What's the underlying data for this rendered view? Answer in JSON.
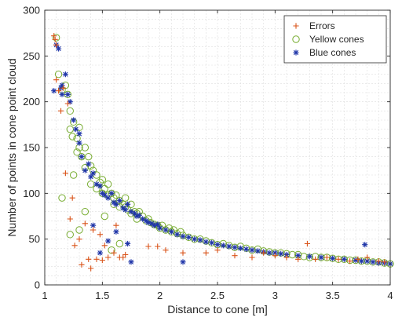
{
  "chart_data": {
    "type": "scatter",
    "title": "",
    "xlabel": "Distance to cone [m]",
    "ylabel": "Number of points in cone point cloud",
    "xlim": [
      1,
      4
    ],
    "ylim": [
      0,
      300
    ],
    "xticks": [
      "1",
      "1.5",
      "2",
      "2.5",
      "3",
      "3.5",
      "4"
    ],
    "yticks": [
      "0",
      "50",
      "100",
      "150",
      "200",
      "250",
      "300"
    ],
    "grid": true,
    "minor_grid": true,
    "legend_position": "top-right",
    "series": [
      {
        "name": "Errors",
        "marker": "plus",
        "color": "#d95319",
        "x": [
          1.08,
          1.09,
          1.1,
          1.1,
          1.12,
          1.14,
          1.16,
          1.18,
          1.2,
          1.22,
          1.24,
          1.26,
          1.3,
          1.32,
          1.35,
          1.38,
          1.4,
          1.42,
          1.45,
          1.48,
          1.5,
          1.52,
          1.55,
          1.6,
          1.62,
          1.65,
          1.68,
          1.7,
          1.9,
          1.98,
          2.05,
          2.2,
          2.4,
          2.5,
          2.65,
          2.8,
          2.9,
          3.0,
          3.1,
          3.2,
          3.28,
          3.35,
          3.45,
          3.55,
          3.65,
          3.72,
          3.8,
          3.9,
          3.95
        ],
        "y": [
          272,
          268,
          224,
          262,
          212,
          190,
          215,
          122,
          198,
          72,
          95,
          43,
          50,
          22,
          67,
          28,
          18,
          60,
          28,
          55,
          27,
          43,
          30,
          35,
          65,
          30,
          30,
          33,
          42,
          42,
          38,
          35,
          35,
          38,
          32,
          30,
          35,
          32,
          30,
          28,
          45,
          28,
          30,
          28,
          26,
          28,
          30,
          26,
          25
        ]
      },
      {
        "name": "Yellow cones",
        "marker": "circle",
        "color": "#77ac30",
        "x": [
          1.1,
          1.12,
          1.15,
          1.18,
          1.2,
          1.22,
          1.22,
          1.24,
          1.25,
          1.28,
          1.28,
          1.3,
          1.3,
          1.32,
          1.35,
          1.35,
          1.38,
          1.4,
          1.4,
          1.42,
          1.45,
          1.45,
          1.48,
          1.5,
          1.5,
          1.52,
          1.55,
          1.55,
          1.58,
          1.6,
          1.6,
          1.62,
          1.65,
          1.65,
          1.68,
          1.7,
          1.7,
          1.72,
          1.75,
          1.75,
          1.78,
          1.8,
          1.8,
          1.82,
          1.85,
          1.88,
          1.9,
          1.92,
          1.95,
          1.98,
          2.0,
          2.02,
          2.05,
          2.08,
          2.1,
          2.12,
          2.15,
          2.18,
          2.2,
          2.25,
          2.3,
          2.35,
          2.4,
          2.45,
          2.5,
          2.55,
          2.6,
          2.65,
          2.7,
          2.75,
          2.8,
          2.85,
          2.9,
          2.95,
          3.0,
          3.05,
          3.1,
          3.15,
          3.2,
          3.25,
          3.3,
          3.35,
          3.4,
          3.45,
          3.5,
          3.55,
          3.6,
          3.65,
          3.7,
          3.75,
          3.8,
          3.85,
          3.9,
          3.95,
          4.0,
          1.15,
          1.22,
          1.3,
          1.35,
          1.52,
          1.58,
          1.65,
          1.25
        ],
        "y": [
          270,
          230,
          213,
          218,
          208,
          190,
          170,
          162,
          178,
          160,
          145,
          150,
          172,
          140,
          128,
          150,
          140,
          130,
          110,
          125,
          120,
          105,
          112,
          115,
          100,
          105,
          98,
          110,
          100,
          95,
          88,
          98,
          92,
          85,
          88,
          85,
          95,
          82,
          78,
          88,
          80,
          78,
          72,
          80,
          75,
          70,
          72,
          68,
          66,
          65,
          62,
          65,
          60,
          62,
          58,
          60,
          56,
          58,
          54,
          52,
          50,
          50,
          48,
          46,
          44,
          45,
          43,
          41,
          42,
          40,
          38,
          39,
          37,
          36,
          35,
          35,
          34,
          33,
          33,
          31,
          30,
          31,
          30,
          30,
          29,
          28,
          28,
          27,
          27,
          26,
          26,
          25,
          25,
          24,
          23,
          95,
          55,
          60,
          80,
          75,
          38,
          45,
          120
        ]
      },
      {
        "name": "Blue cones",
        "marker": "asterisk",
        "color": "#1f35a8",
        "x": [
          1.1,
          1.12,
          1.14,
          1.15,
          1.18,
          1.2,
          1.22,
          1.25,
          1.27,
          1.3,
          1.32,
          1.35,
          1.38,
          1.4,
          1.42,
          1.45,
          1.48,
          1.5,
          1.52,
          1.55,
          1.58,
          1.6,
          1.62,
          1.65,
          1.68,
          1.7,
          1.72,
          1.75,
          1.78,
          1.8,
          1.82,
          1.85,
          1.88,
          1.9,
          1.93,
          1.95,
          1.98,
          2.0,
          2.05,
          2.1,
          2.15,
          2.2,
          2.25,
          2.3,
          2.35,
          2.4,
          2.45,
          2.5,
          2.55,
          2.6,
          2.65,
          2.7,
          2.75,
          2.8,
          2.85,
          2.9,
          2.95,
          3.0,
          3.05,
          3.1,
          3.2,
          3.3,
          3.4,
          3.5,
          3.6,
          3.7,
          3.75,
          3.8,
          3.85,
          3.9,
          3.95,
          4.0,
          1.08,
          1.15,
          1.3,
          1.42,
          1.48,
          1.55,
          1.62,
          1.72,
          1.75,
          2.2,
          3.78
        ],
        "y": [
          262,
          258,
          215,
          218,
          230,
          208,
          200,
          180,
          170,
          155,
          140,
          125,
          132,
          118,
          122,
          110,
          108,
          100,
          98,
          95,
          100,
          90,
          88,
          92,
          84,
          82,
          88,
          80,
          78,
          75,
          76,
          72,
          70,
          68,
          67,
          65,
          66,
          62,
          60,
          58,
          55,
          53,
          52,
          50,
          49,
          47,
          46,
          44,
          43,
          42,
          41,
          40,
          39,
          38,
          37,
          36,
          35,
          35,
          34,
          33,
          32,
          31,
          30,
          29,
          28,
          27,
          26,
          26,
          25,
          24,
          24,
          23,
          212,
          208,
          165,
          65,
          35,
          48,
          58,
          45,
          25,
          25,
          44
        ]
      }
    ]
  }
}
